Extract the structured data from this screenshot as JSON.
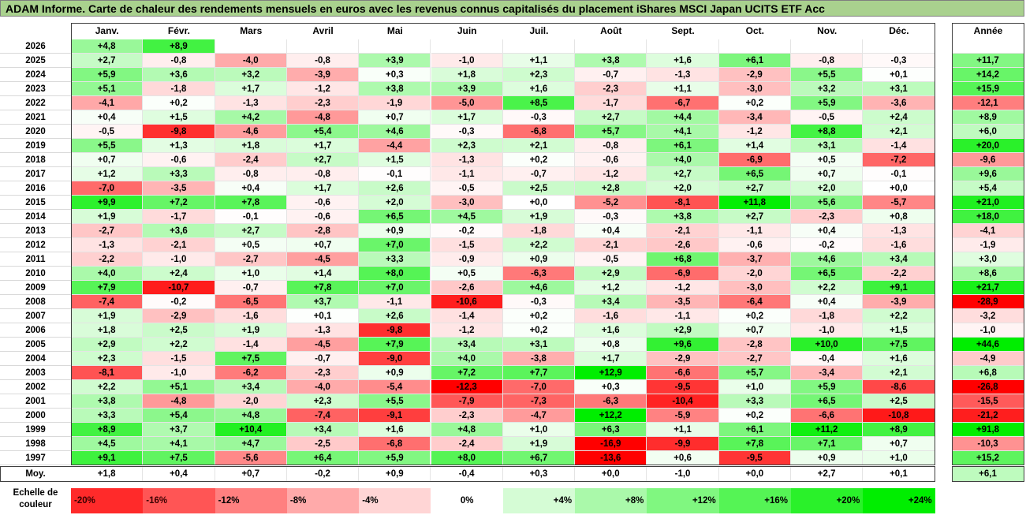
{
  "title": "ADAM Informe. Carte de chaleur des rendements mensuels en euros avec les revenus connus capitalisés du placement iShares MSCI Japan UCITS ETF Acc",
  "chart_data": {
    "type": "heatmap",
    "columns": [
      "Janv.",
      "Févr.",
      "Mars",
      "Avril",
      "Mai",
      "Juin",
      "Juil.",
      "Août",
      "Sept.",
      "Oct.",
      "Nov.",
      "Déc."
    ],
    "annual_header": "Année",
    "rows": [
      {
        "year": "2026",
        "values": [
          "+4,8",
          "+8,9",
          null,
          null,
          null,
          null,
          null,
          null,
          null,
          null,
          null,
          null
        ],
        "annual": null
      },
      {
        "year": "2025",
        "values": [
          "+2,7",
          "-0,8",
          "-4,0",
          "-0,8",
          "+3,9",
          "-1,0",
          "+1,1",
          "+3,8",
          "+1,6",
          "+6,1",
          "-0,8",
          "-0,3"
        ],
        "annual": "+11,7"
      },
      {
        "year": "2024",
        "values": [
          "+5,9",
          "+3,6",
          "+3,2",
          "-3,9",
          "+0,3",
          "+1,8",
          "+2,3",
          "-0,7",
          "-1,3",
          "-2,9",
          "+5,5",
          "+0,1"
        ],
        "annual": "+14,2"
      },
      {
        "year": "2023",
        "values": [
          "+5,1",
          "-1,8",
          "+1,7",
          "-1,2",
          "+3,8",
          "+3,9",
          "+1,6",
          "-2,3",
          "+1,1",
          "-3,0",
          "+3,2",
          "+3,1"
        ],
        "annual": "+15,9"
      },
      {
        "year": "2022",
        "values": [
          "-4,1",
          "+0,2",
          "-1,3",
          "-2,3",
          "-1,9",
          "-5,0",
          "+8,5",
          "-1,7",
          "-6,7",
          "+0,2",
          "+5,9",
          "-3,6"
        ],
        "annual": "-12,1"
      },
      {
        "year": "2021",
        "values": [
          "+0,4",
          "+1,5",
          "+4,2",
          "-4,8",
          "+0,7",
          "+1,7",
          "-0,3",
          "+2,7",
          "+4,4",
          "-3,4",
          "-0,5",
          "+2,4"
        ],
        "annual": "+8,9"
      },
      {
        "year": "2020",
        "values": [
          "-0,5",
          "-9,8",
          "-4,6",
          "+5,4",
          "+4,6",
          "-0,3",
          "-6,8",
          "+5,7",
          "+4,1",
          "-1,2",
          "+8,8",
          "+2,1"
        ],
        "annual": "+6,0"
      },
      {
        "year": "2019",
        "values": [
          "+5,5",
          "+1,3",
          "+1,8",
          "+1,7",
          "-4,4",
          "+2,3",
          "+2,1",
          "-0,8",
          "+6,1",
          "+1,4",
          "+3,1",
          "-1,4"
        ],
        "annual": "+20,0"
      },
      {
        "year": "2018",
        "values": [
          "+0,7",
          "-0,6",
          "-2,4",
          "+2,7",
          "+1,5",
          "-1,3",
          "+0,2",
          "-0,6",
          "+4,0",
          "-6,9",
          "+0,5",
          "-7,2"
        ],
        "annual": "-9,6"
      },
      {
        "year": "2017",
        "values": [
          "+1,2",
          "+3,3",
          "-0,8",
          "-0,8",
          "-0,1",
          "-1,1",
          "-0,7",
          "-1,2",
          "+2,7",
          "+6,5",
          "+0,7",
          "-0,1"
        ],
        "annual": "+9,6"
      },
      {
        "year": "2016",
        "values": [
          "-7,0",
          "-3,5",
          "+0,4",
          "+1,7",
          "+2,6",
          "-0,5",
          "+2,5",
          "+2,8",
          "+2,0",
          "+2,7",
          "+2,0",
          "+0,0"
        ],
        "annual": "+5,4"
      },
      {
        "year": "2015",
        "values": [
          "+9,9",
          "+7,2",
          "+7,8",
          "-0,6",
          "+2,0",
          "-3,0",
          "+0,0",
          "-5,2",
          "-8,1",
          "+11,8",
          "+5,6",
          "-5,7"
        ],
        "annual": "+21,0"
      },
      {
        "year": "2014",
        "values": [
          "+1,9",
          "-1,7",
          "-0,1",
          "-0,6",
          "+6,5",
          "+4,5",
          "+1,9",
          "-0,3",
          "+3,8",
          "+2,7",
          "-2,3",
          "+0,8"
        ],
        "annual": "+18,0"
      },
      {
        "year": "2013",
        "values": [
          "-2,7",
          "+3,6",
          "+2,7",
          "-2,8",
          "+0,9",
          "-0,2",
          "-1,8",
          "+0,4",
          "-2,1",
          "-1,1",
          "+0,4",
          "-1,3"
        ],
        "annual": "-4,1"
      },
      {
        "year": "2012",
        "values": [
          "-1,3",
          "-2,1",
          "+0,5",
          "+0,7",
          "+7,0",
          "-1,5",
          "+2,2",
          "-2,1",
          "-2,6",
          "-0,6",
          "-0,2",
          "-1,6"
        ],
        "annual": "-1,9"
      },
      {
        "year": "2011",
        "values": [
          "-2,2",
          "-1,0",
          "-2,7",
          "-4,5",
          "+3,3",
          "-0,9",
          "+0,9",
          "-0,5",
          "+6,8",
          "-3,7",
          "+4,6",
          "+3,4"
        ],
        "annual": "+3,0"
      },
      {
        "year": "2010",
        "values": [
          "+4,0",
          "+2,4",
          "+1,0",
          "+1,4",
          "+8,0",
          "+0,5",
          "-6,3",
          "+2,9",
          "-6,9",
          "-2,0",
          "+6,5",
          "-2,2"
        ],
        "annual": "+8,6"
      },
      {
        "year": "2009",
        "values": [
          "+7,9",
          "-10,7",
          "-0,7",
          "+7,8",
          "+7,0",
          "-2,6",
          "+4,6",
          "+1,2",
          "-1,2",
          "-3,0",
          "+2,2",
          "+9,1"
        ],
        "annual": "+21,7"
      },
      {
        "year": "2008",
        "values": [
          "-7,4",
          "-0,2",
          "-6,5",
          "+3,7",
          "-1,1",
          "-10,6",
          "-0,3",
          "+3,4",
          "-3,5",
          "-6,4",
          "+0,4",
          "-3,9"
        ],
        "annual": "-28,9"
      },
      {
        "year": "2007",
        "values": [
          "+1,9",
          "-2,9",
          "-1,6",
          "+0,1",
          "+2,6",
          "-1,4",
          "+0,2",
          "-1,6",
          "-1,1",
          "+0,2",
          "-1,8",
          "+2,2"
        ],
        "annual": "-3,2"
      },
      {
        "year": "2006",
        "values": [
          "+1,8",
          "+2,5",
          "+1,9",
          "-1,3",
          "-9,8",
          "-1,2",
          "+0,2",
          "+1,6",
          "+2,9",
          "+0,7",
          "-1,0",
          "+1,5"
        ],
        "annual": "-1,0"
      },
      {
        "year": "2005",
        "values": [
          "+2,9",
          "+2,2",
          "-1,4",
          "-4,5",
          "+7,9",
          "+3,4",
          "+3,1",
          "+0,8",
          "+9,6",
          "-2,8",
          "+10,0",
          "+7,5"
        ],
        "annual": "+44,6"
      },
      {
        "year": "2004",
        "values": [
          "+2,3",
          "-1,5",
          "+7,5",
          "-0,7",
          "-9,0",
          "+4,0",
          "-3,8",
          "+1,7",
          "-2,9",
          "-2,7",
          "-0,4",
          "+1,6"
        ],
        "annual": "-4,9"
      },
      {
        "year": "2003",
        "values": [
          "-8,1",
          "-1,0",
          "-6,2",
          "-2,3",
          "+0,9",
          "+7,2",
          "+7,7",
          "+12,9",
          "-6,6",
          "+5,7",
          "-3,4",
          "+2,1"
        ],
        "annual": "+6,8"
      },
      {
        "year": "2002",
        "values": [
          "+2,2",
          "+5,1",
          "+3,4",
          "-4,0",
          "-5,4",
          "-12,3",
          "-7,0",
          "+0,3",
          "-9,5",
          "+1,0",
          "+5,9",
          "-8,6"
        ],
        "annual": "-26,8"
      },
      {
        "year": "2001",
        "values": [
          "+3,8",
          "-4,8",
          "-2,0",
          "+2,3",
          "+5,5",
          "-7,9",
          "-7,3",
          "-6,3",
          "-10,4",
          "+3,3",
          "+6,5",
          "+2,5"
        ],
        "annual": "-15,5"
      },
      {
        "year": "2000",
        "values": [
          "+3,3",
          "+5,4",
          "+4,8",
          "-7,4",
          "-9,1",
          "-2,3",
          "-4,7",
          "+12,2",
          "-5,9",
          "+0,2",
          "-6,6",
          "-10,8"
        ],
        "annual": "-21,2"
      },
      {
        "year": "1999",
        "values": [
          "+8,9",
          "+3,7",
          "+10,4",
          "+3,4",
          "+1,6",
          "+4,8",
          "+1,0",
          "+6,3",
          "+1,1",
          "+6,1",
          "+11,2",
          "+8,9"
        ],
        "annual": "+91,8"
      },
      {
        "year": "1998",
        "values": [
          "+4,5",
          "+4,1",
          "+4,7",
          "-2,5",
          "-6,8",
          "-2,4",
          "+1,9",
          "-16,9",
          "-9,9",
          "+7,8",
          "+7,1",
          "+0,7"
        ],
        "annual": "-10,3"
      },
      {
        "year": "1997",
        "values": [
          "+9,1",
          "+7,5",
          "-5,6",
          "+6,4",
          "+5,9",
          "+8,0",
          "+6,7",
          "-13,6",
          "+0,6",
          "-9,5",
          "+0,9",
          "+1,0"
        ],
        "annual": "+15,2"
      }
    ],
    "average": {
      "label": "Moy.",
      "values": [
        "+1,8",
        "+0,4",
        "+0,7",
        "-0,2",
        "+0,9",
        "-0,4",
        "+0,3",
        "+0,0",
        "-1,0",
        "+0,0",
        "+2,7",
        "+0,1"
      ],
      "annual": "+6,1"
    },
    "scale": {
      "label_line1": "Echelle de",
      "label_line2": "couleur",
      "stops": [
        "-20%",
        "-16%",
        "-12%",
        "-8%",
        "-4%",
        "0%",
        "+4%",
        "+8%",
        "+12%",
        "+16%",
        "+20%",
        "+24%"
      ],
      "stop_values": [
        -20,
        -16,
        -12,
        -8,
        -4,
        0,
        4,
        8,
        12,
        16,
        20,
        24
      ]
    },
    "colors": {
      "negative_max": "#ff0000",
      "neutral": "#ffffff",
      "positive_max": "#00ee00",
      "title_bg": "#a9d18e"
    }
  }
}
